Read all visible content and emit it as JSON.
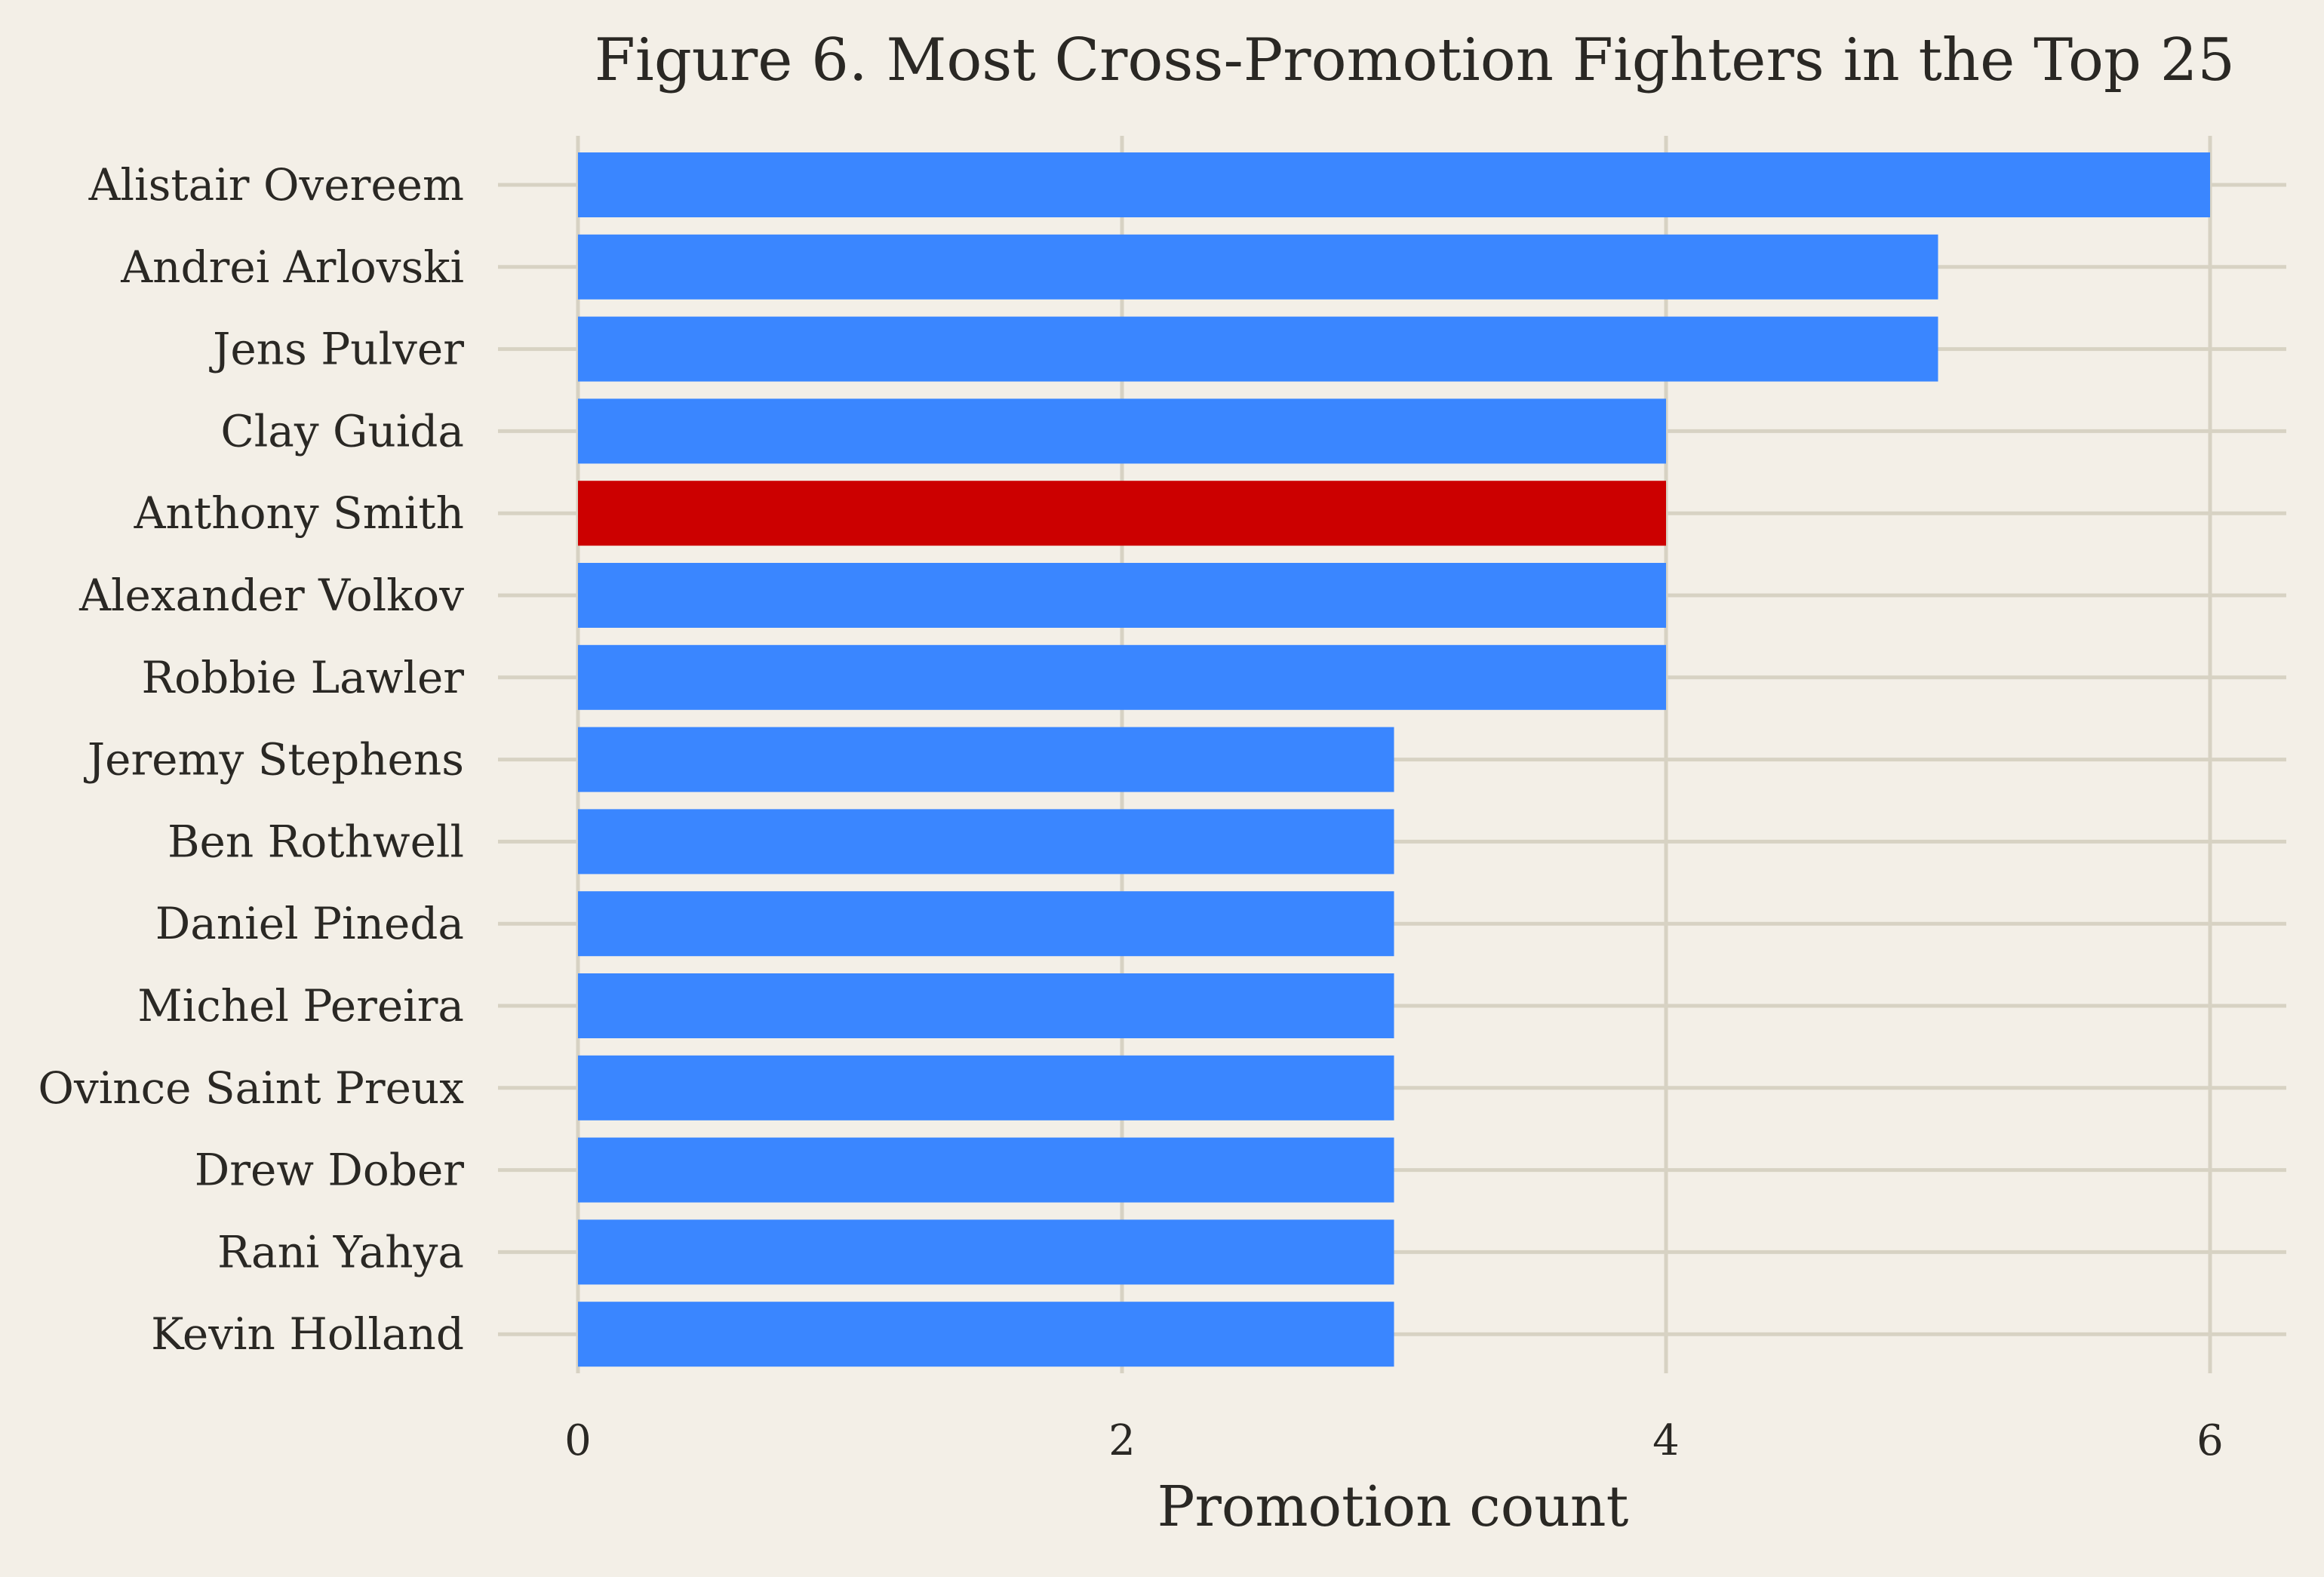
{
  "chart_data": {
    "type": "bar",
    "orientation": "horizontal",
    "title": "Figure 6. Most Cross-Promotion Fighters in the Top 25",
    "xlabel": "Promotion count",
    "ylabel": "",
    "categories": [
      "Alistair Overeem",
      "Andrei Arlovski",
      "Jens Pulver",
      "Clay Guida",
      "Anthony Smith",
      "Alexander Volkov",
      "Robbie Lawler",
      "Jeremy Stephens",
      "Ben Rothwell",
      "Daniel Pineda",
      "Michel Pereira",
      "Ovince Saint Preux",
      "Drew Dober",
      "Rani Yahya",
      "Kevin Holland"
    ],
    "values": [
      6,
      5,
      5,
      4,
      4,
      4,
      4,
      3,
      3,
      3,
      3,
      3,
      3,
      3,
      3
    ],
    "xlim": [
      0,
      6.15
    ],
    "xticks": [
      0,
      2,
      4,
      6
    ],
    "grid": true,
    "highlight_category": "Anthony Smith",
    "colors": {
      "default_bar": "#3a86ff",
      "highlight_bar": "#cc0000",
      "background": "#f3efe7",
      "grid": "#d7d2c3",
      "text": "#2a2824"
    }
  }
}
